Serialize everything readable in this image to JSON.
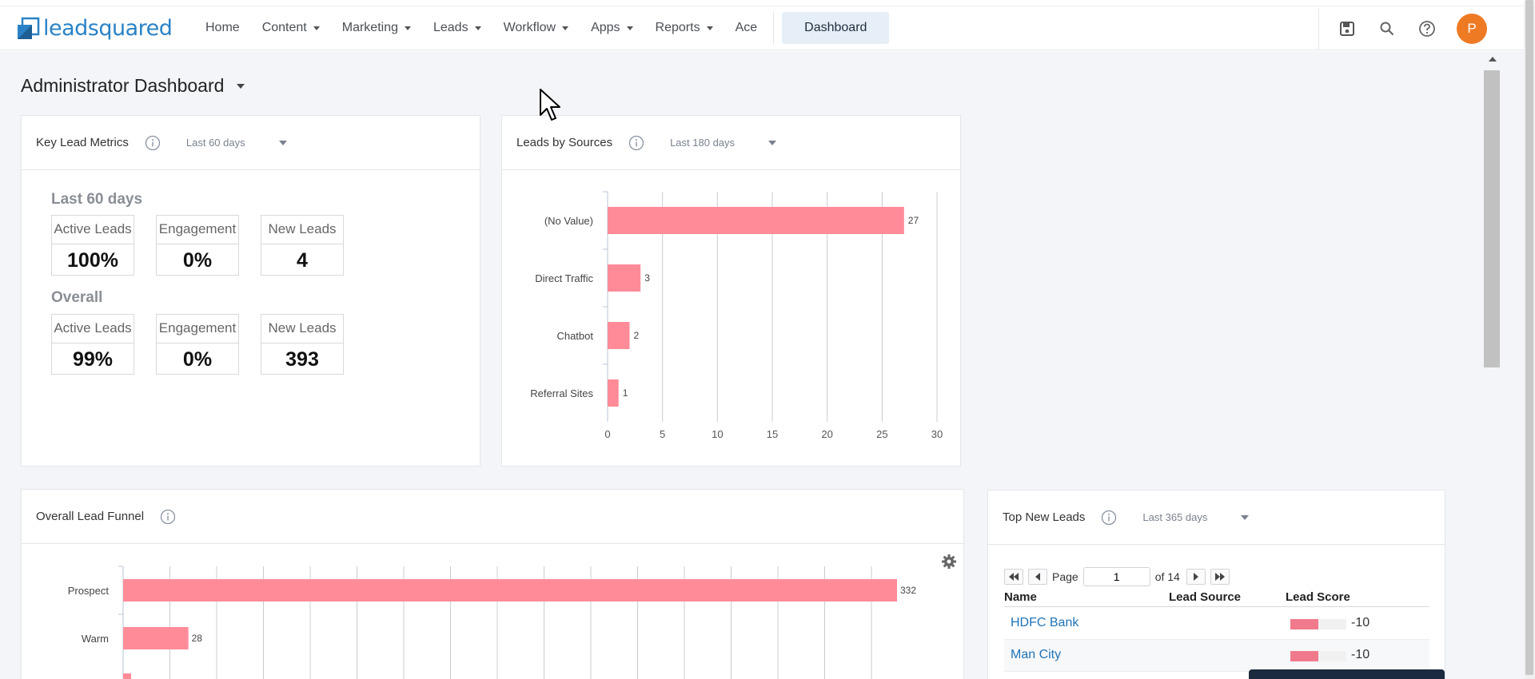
{
  "brand": {
    "logo_text": "leadsquared",
    "logo_color": "#2a82c6"
  },
  "nav": {
    "items": [
      {
        "label": "Home",
        "caret": false
      },
      {
        "label": "Content",
        "caret": true
      },
      {
        "label": "Marketing",
        "caret": true
      },
      {
        "label": "Leads",
        "caret": true
      },
      {
        "label": "Workflow",
        "caret": true
      },
      {
        "label": "Apps",
        "caret": true
      },
      {
        "label": "Reports",
        "caret": true
      },
      {
        "label": "Ace",
        "caret": false
      }
    ],
    "active_tab": "Dashboard",
    "tools": [
      "save-icon",
      "search-icon",
      "help-icon"
    ],
    "avatar_initial": "P",
    "avatar_color": "#ee7a24"
  },
  "page": {
    "title": "Administrator Dashboard"
  },
  "key_metrics": {
    "title": "Key Lead Metrics",
    "range": "Last 60 days",
    "sections": [
      {
        "heading": "Last 60 days",
        "boxes": [
          {
            "label": "Active Leads",
            "value": "100%"
          },
          {
            "label": "Engagement",
            "value": "0%"
          },
          {
            "label": "New Leads",
            "value": "4"
          }
        ]
      },
      {
        "heading": "Overall",
        "boxes": [
          {
            "label": "Active Leads",
            "value": "99%"
          },
          {
            "label": "Engagement",
            "value": "0%"
          },
          {
            "label": "New Leads",
            "value": "393"
          }
        ]
      }
    ]
  },
  "leads_by_sources": {
    "title": "Leads by Sources",
    "range": "Last 180 days"
  },
  "lead_funnel": {
    "title": "Overall Lead Funnel"
  },
  "top_new_leads": {
    "title": "Top New Leads",
    "range": "Last 365 days",
    "pager": {
      "page_label": "Page",
      "page_value": "1",
      "of_label": "of 14"
    },
    "columns": [
      "Name",
      "Lead Source",
      "Lead Score"
    ],
    "rows": [
      {
        "name": "HDFC Bank",
        "source": "",
        "score": "-10",
        "score_fraction": 0.5
      },
      {
        "name": "Man City",
        "source": "",
        "score": "-10",
        "score_fraction": 0.5
      }
    ]
  },
  "chart_data": [
    {
      "type": "bar",
      "orientation": "horizontal",
      "title": "Leads by Sources",
      "categories": [
        "(No Value)",
        "Direct Traffic",
        "Chatbot",
        "Referral Sites"
      ],
      "values": [
        27,
        3,
        2,
        1
      ],
      "xlim": [
        0,
        30
      ],
      "xticks": [
        0,
        5,
        10,
        15,
        20,
        25,
        30
      ],
      "grid": true,
      "bar_color": "#ff8b99"
    },
    {
      "type": "bar",
      "orientation": "horizontal",
      "title": "Overall Lead Funnel",
      "categories": [
        "Prospect",
        "Warm"
      ],
      "values": [
        332,
        28
      ],
      "grid": true,
      "bar_color": "#ff8b99"
    }
  ]
}
